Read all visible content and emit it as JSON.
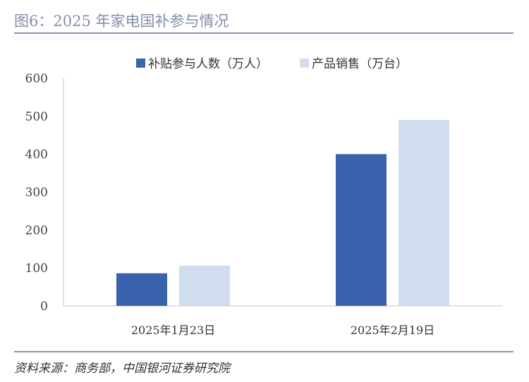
{
  "title": "图6：2025 年家电国补参与情况",
  "source": "资料来源：商务部，中国银河证券研究院",
  "chart_data": {
    "type": "bar",
    "title": "图6：2025 年家电国补参与情况",
    "categories": [
      "2025年1月23日",
      "2025年2月19日"
    ],
    "series": [
      {
        "name": "补贴参与人数（万人）",
        "values": [
          86,
          400
        ],
        "color": "#3a63ad"
      },
      {
        "name": "产品销售（万台）",
        "values": [
          106,
          490
        ],
        "color": "#cfddef"
      }
    ],
    "ylim": [
      0,
      600
    ],
    "yticks": [
      "0",
      "100",
      "200",
      "300",
      "400",
      "500",
      "600"
    ],
    "grid": false,
    "legend": "top"
  }
}
